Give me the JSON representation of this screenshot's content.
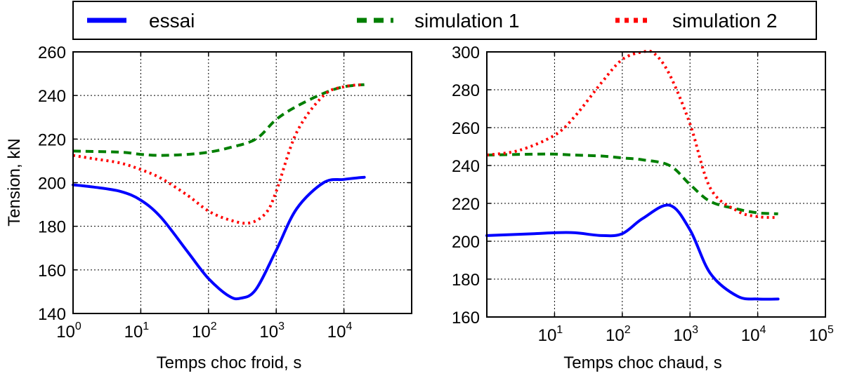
{
  "legend": {
    "items": [
      {
        "label": "essai",
        "color": "#0000ff",
        "style": "solid"
      },
      {
        "label": "simulation 1",
        "color": "#007f00",
        "style": "dashed"
      },
      {
        "label": "simulation 2",
        "color": "#ff0000",
        "style": "dotted"
      }
    ]
  },
  "chart_data": [
    {
      "type": "line",
      "xlabel": "Temps choc froid, s",
      "ylabel": "Tension, kN",
      "xscale": "log",
      "xlim": [
        1,
        100000
      ],
      "ylim": [
        140,
        260
      ],
      "yticks": [
        140,
        160,
        180,
        200,
        220,
        240,
        260
      ],
      "xticks": [
        1,
        10,
        100,
        1000,
        10000
      ],
      "xtick_labels": [
        {
          "base": "10",
          "exp": "0"
        },
        {
          "base": "10",
          "exp": "1"
        },
        {
          "base": "10",
          "exp": "2"
        },
        {
          "base": "10",
          "exp": "3"
        },
        {
          "base": "10",
          "exp": "4"
        }
      ],
      "grid": true,
      "series": [
        {
          "name": "essai",
          "color": "#0000ff",
          "style": "solid",
          "x": [
            1,
            2,
            5,
            10,
            20,
            50,
            100,
            200,
            300,
            500,
            1000,
            2000,
            5000,
            10000,
            20000
          ],
          "y": [
            199,
            198,
            196,
            192,
            184,
            168,
            156,
            148,
            147,
            151,
            169,
            188,
            200,
            201.5,
            202.5
          ]
        },
        {
          "name": "simulation 1",
          "color": "#007f00",
          "style": "dashed",
          "x": [
            1,
            5,
            10,
            20,
            50,
            100,
            200,
            500,
            1000,
            2000,
            5000,
            10000,
            20000
          ],
          "y": [
            214.5,
            214,
            213,
            212.5,
            213,
            214,
            216,
            220,
            229,
            235,
            241,
            244,
            245
          ]
        },
        {
          "name": "simulation 2",
          "color": "#ff0000",
          "style": "dotted",
          "x": [
            1,
            2,
            5,
            10,
            20,
            50,
            100,
            200,
            400,
            700,
            1000,
            2000,
            5000,
            10000,
            20000
          ],
          "y": [
            212.5,
            211,
            209,
            206,
            202,
            194,
            187,
            183,
            181.5,
            186,
            196,
            223,
            240,
            244,
            245
          ]
        }
      ]
    },
    {
      "type": "line",
      "xlabel": "Temps choc chaud, s",
      "ylabel": "",
      "xscale": "log",
      "xlim": [
        1,
        100000
      ],
      "ylim": [
        160,
        300
      ],
      "yticks": [
        160,
        180,
        200,
        220,
        240,
        260,
        280,
        300
      ],
      "xticks": [
        10,
        100,
        1000,
        10000,
        100000
      ],
      "xtick_labels": [
        {
          "base": "10",
          "exp": "1"
        },
        {
          "base": "10",
          "exp": "2"
        },
        {
          "base": "10",
          "exp": "3"
        },
        {
          "base": "10",
          "exp": "4"
        },
        {
          "base": "10",
          "exp": "5"
        }
      ],
      "grid": true,
      "series": [
        {
          "name": "essai",
          "color": "#0000ff",
          "style": "solid",
          "x": [
            1,
            5,
            10,
            20,
            50,
            100,
            200,
            500,
            1000,
            2000,
            5000,
            10000,
            20000
          ],
          "y": [
            203,
            204,
            204.5,
            204.5,
            203,
            204,
            212,
            219,
            206,
            183,
            171,
            169.5,
            169.5
          ]
        },
        {
          "name": "simulation 1",
          "color": "#007f00",
          "style": "dashed",
          "x": [
            1,
            5,
            10,
            20,
            50,
            100,
            200,
            500,
            1000,
            2000,
            5000,
            10000,
            20000
          ],
          "y": [
            245.5,
            246,
            246,
            245.5,
            245,
            244,
            243,
            240,
            230,
            221,
            217,
            215,
            214.5
          ]
        },
        {
          "name": "simulation 2",
          "color": "#ff0000",
          "style": "dotted",
          "x": [
            1,
            3,
            10,
            20,
            50,
            100,
            200,
            300,
            500,
            1000,
            2000,
            5000,
            10000,
            20000
          ],
          "y": [
            245.5,
            248,
            256,
            266,
            284,
            296,
            300,
            299,
            288,
            262,
            228,
            216,
            213,
            212.5
          ]
        }
      ]
    }
  ]
}
